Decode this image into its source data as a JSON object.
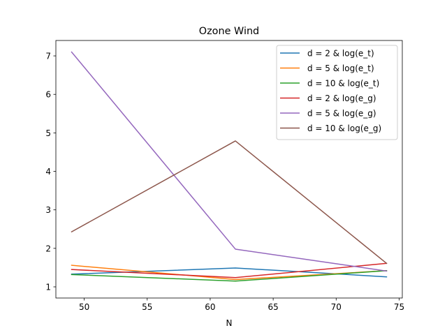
{
  "chart_data": {
    "type": "line",
    "title": "Ozone Wind",
    "xlabel": "N",
    "ylabel": "",
    "x": [
      49,
      62,
      74
    ],
    "xlim": [
      47.75,
      75.25
    ],
    "ylim": [
      0.71,
      7.4
    ],
    "xticks": [
      50,
      55,
      60,
      65,
      70,
      75
    ],
    "yticks": [
      1,
      2,
      3,
      4,
      5,
      6,
      7
    ],
    "grid": false,
    "legend_position": "top-right",
    "series": [
      {
        "name": "d = 2 & log(e_t)",
        "color": "#1f77b4",
        "values": [
          1.33,
          1.49,
          1.26
        ]
      },
      {
        "name": "d = 5 & log(e_t)",
        "color": "#ff7f0e",
        "values": [
          1.56,
          1.19,
          1.42
        ]
      },
      {
        "name": "d = 10 & log(e_t)",
        "color": "#2ca02c",
        "values": [
          1.32,
          1.15,
          1.42
        ]
      },
      {
        "name": "d = 2 & log(e_g)",
        "color": "#d62728",
        "values": [
          1.45,
          1.24,
          1.61
        ]
      },
      {
        "name": "d = 5 & log(e_g)",
        "color": "#9467bd",
        "values": [
          7.1,
          1.98,
          1.41
        ]
      },
      {
        "name": "d = 10 & log(e_g)",
        "color": "#8c564b",
        "values": [
          2.43,
          4.79,
          1.61
        ]
      }
    ]
  }
}
